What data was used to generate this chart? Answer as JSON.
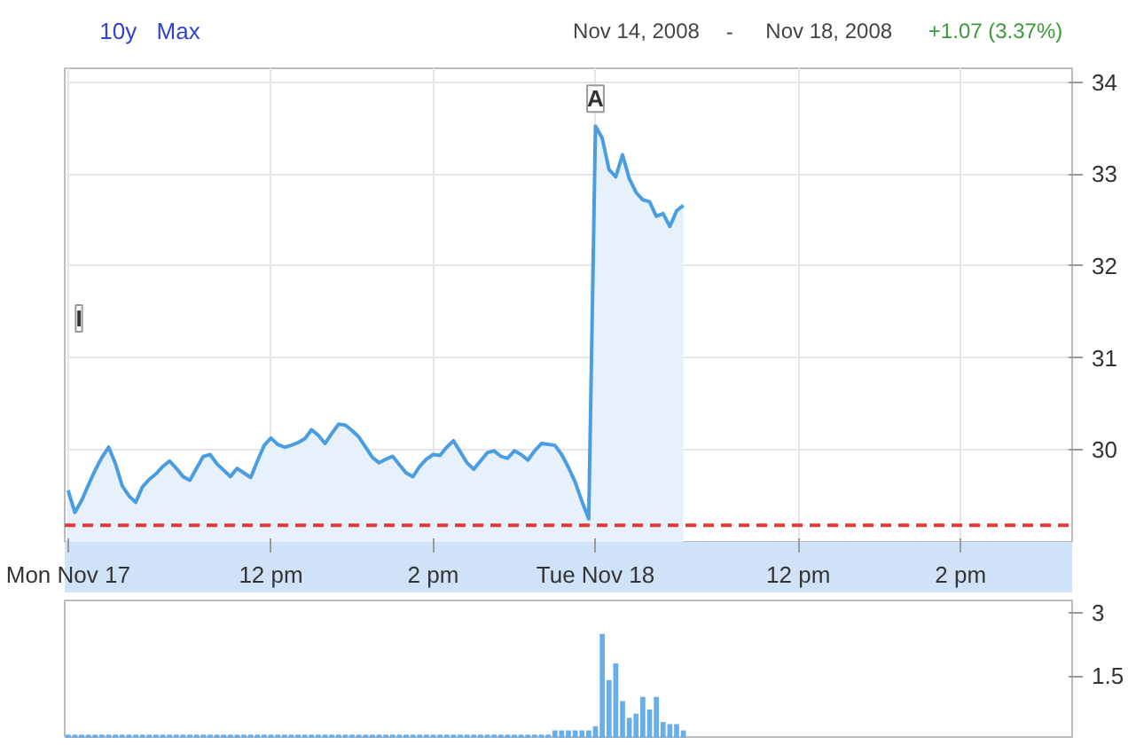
{
  "chart_data": [
    {
      "type": "area",
      "color": "#4a9de0",
      "categories": [
        "Mon Nov 17",
        null,
        null,
        null,
        null,
        null,
        null,
        null,
        null,
        null,
        null,
        null,
        null,
        null,
        null,
        null,
        null,
        null,
        null,
        null,
        null,
        null,
        null,
        null,
        null,
        null,
        null,
        null,
        null,
        null,
        "12 pm",
        null,
        null,
        null,
        null,
        null,
        null,
        null,
        null,
        null,
        null,
        null,
        null,
        null,
        null,
        null,
        null,
        null,
        null,
        null,
        null,
        null,
        null,
        null,
        "2 pm",
        null,
        null,
        null,
        null,
        null,
        null,
        null,
        null,
        null,
        null,
        null,
        null,
        null,
        null,
        null,
        null,
        null,
        null,
        null,
        null,
        null,
        null,
        null,
        "Tue Nov 18",
        null,
        null,
        null,
        null,
        null,
        null,
        null,
        null,
        null,
        null,
        null,
        null,
        null,
        null,
        null,
        null,
        null,
        null,
        null,
        null,
        null,
        null,
        null,
        null,
        null,
        null,
        null,
        null,
        null,
        "12 pm",
        null,
        null,
        null,
        null,
        null,
        null,
        null,
        null,
        null,
        null,
        null,
        null,
        null,
        null,
        null,
        null,
        null,
        null,
        null,
        null,
        null,
        null,
        null,
        "2 pm",
        null,
        null,
        null,
        null,
        null,
        null,
        null,
        null,
        null,
        null,
        null,
        null,
        null,
        null,
        null,
        null
      ],
      "values": [
        29.56,
        29.32,
        29.45,
        29.62,
        29.78,
        29.92,
        30.03,
        29.85,
        29.61,
        29.5,
        29.43,
        29.6,
        29.68,
        29.74,
        29.82,
        29.88,
        29.8,
        29.71,
        29.67,
        29.8,
        29.93,
        29.95,
        29.85,
        29.78,
        29.71,
        29.8,
        29.75,
        29.7,
        29.88,
        30.05,
        30.13,
        30.06,
        30.03,
        30.05,
        30.08,
        30.12,
        30.22,
        30.16,
        30.07,
        30.18,
        30.28,
        30.27,
        30.21,
        30.14,
        30.03,
        29.92,
        29.86,
        29.9,
        29.93,
        29.84,
        29.75,
        29.71,
        29.82,
        29.9,
        29.95,
        29.94,
        30.03,
        30.1,
        29.98,
        29.86,
        29.79,
        29.88,
        29.97,
        29.99,
        29.93,
        29.91,
        29.99,
        29.95,
        29.89,
        29.99,
        30.07,
        30.06,
        30.05,
        29.95,
        29.81,
        29.65,
        29.44,
        29.25,
        33.52,
        33.39,
        33.05,
        32.97,
        33.21,
        32.95,
        32.8,
        32.72,
        32.7,
        32.54,
        32.57,
        32.43,
        32.6,
        32.66,
        null,
        null,
        null,
        null,
        null,
        null,
        null,
        null,
        null,
        null,
        null,
        null,
        null,
        null,
        null,
        null,
        null,
        null,
        null,
        null,
        null,
        null,
        null,
        null,
        null,
        null,
        null,
        null,
        null,
        null,
        null,
        null,
        null,
        null,
        null,
        null,
        null,
        null,
        null,
        null,
        null,
        null,
        null,
        null,
        null,
        null,
        null,
        null,
        null,
        null,
        null,
        null,
        null,
        null,
        null,
        null,
        null
      ],
      "ylim": [
        29.0,
        34.15
      ],
      "yticks": [
        30,
        31,
        32,
        33,
        34
      ],
      "grid": true,
      "ref_lines": [
        {
          "axis": "y",
          "value": 29.18,
          "color": "#e03a3a",
          "line_style": "dashed"
        }
      ],
      "annotations": [
        "10y",
        "Max",
        "Nov 14, 2008",
        "-",
        "Nov 18, 2008",
        "+1.07 (3.37%)",
        "I",
        {
          "text": "A",
          "x": "Tue Nov 18",
          "y": 33.52
        }
      ]
    },
    {
      "type": "bar",
      "color": "#6aaee8",
      "categories": [
        null,
        null,
        null,
        null,
        null,
        null,
        null,
        null,
        null,
        null,
        null,
        null,
        null,
        null,
        null,
        null,
        null,
        null,
        null,
        null,
        null,
        null,
        null,
        null,
        null,
        null,
        null,
        null,
        null,
        null,
        null,
        null,
        null,
        null,
        null,
        null,
        null,
        null,
        null,
        null,
        null,
        null,
        null,
        null,
        null,
        null,
        null,
        null,
        null,
        null,
        null,
        null,
        null,
        null,
        null,
        null,
        null,
        null,
        null,
        null,
        null,
        null,
        null,
        null,
        null,
        null,
        null,
        null,
        null,
        null,
        null,
        null,
        null,
        null,
        null,
        null,
        null,
        null,
        null,
        null,
        null,
        null,
        null,
        null,
        null,
        null,
        null,
        null,
        null,
        null,
        null,
        null,
        null,
        null,
        null,
        null,
        null,
        null,
        null,
        null,
        null,
        null,
        null,
        null,
        null,
        null,
        null,
        null,
        null,
        null,
        null,
        null,
        null,
        null,
        null,
        null,
        null,
        null,
        null,
        null,
        null,
        null,
        null,
        null,
        null,
        null,
        null,
        null,
        null,
        null,
        null,
        null,
        null,
        null,
        null,
        null,
        null,
        null,
        null,
        null,
        null,
        null,
        null,
        null,
        null,
        null,
        null,
        null,
        null
      ],
      "values": [
        0.1,
        0.1,
        0.1,
        0.1,
        0.1,
        0.1,
        0.1,
        0.1,
        0.1,
        0.1,
        0.1,
        0.1,
        0.1,
        0.1,
        0.1,
        0.1,
        0.1,
        0.1,
        0.1,
        0.1,
        0.1,
        0.1,
        0.1,
        0.1,
        0.1,
        0.1,
        0.1,
        0.1,
        0.1,
        0.1,
        0.1,
        0.1,
        0.1,
        0.1,
        0.1,
        0.1,
        0.1,
        0.1,
        0.1,
        0.1,
        0.1,
        0.1,
        0.1,
        0.1,
        0.1,
        0.1,
        0.1,
        0.1,
        0.1,
        0.1,
        0.1,
        0.1,
        0.1,
        0.1,
        0.1,
        0.1,
        0.1,
        0.1,
        0.1,
        0.1,
        0.1,
        0.1,
        0.1,
        0.1,
        0.1,
        0.1,
        0.1,
        0.1,
        0.1,
        0.1,
        0.1,
        0.1,
        0.2,
        0.2,
        0.2,
        0.2,
        0.2,
        0.2,
        0.3,
        2.5,
        1.4,
        1.8,
        0.9,
        0.5,
        0.6,
        1.0,
        0.7,
        1.0,
        0.4,
        0.35,
        0.35,
        0.2,
        null,
        null,
        null,
        null,
        null,
        null,
        null,
        null,
        null,
        null,
        null,
        null,
        null,
        null,
        null,
        null,
        null,
        null,
        null,
        null,
        null,
        null,
        null,
        null,
        null,
        null,
        null,
        null,
        null,
        null,
        null,
        null,
        null,
        null,
        null,
        null,
        null,
        null,
        null,
        null,
        null,
        null,
        null,
        null,
        null,
        null,
        null,
        null,
        null,
        null,
        null,
        null,
        null,
        null,
        null,
        null,
        null
      ],
      "ylim": [
        0,
        3.3
      ],
      "yticks": [
        1.5,
        3
      ],
      "tick_labels": "y"
    }
  ]
}
